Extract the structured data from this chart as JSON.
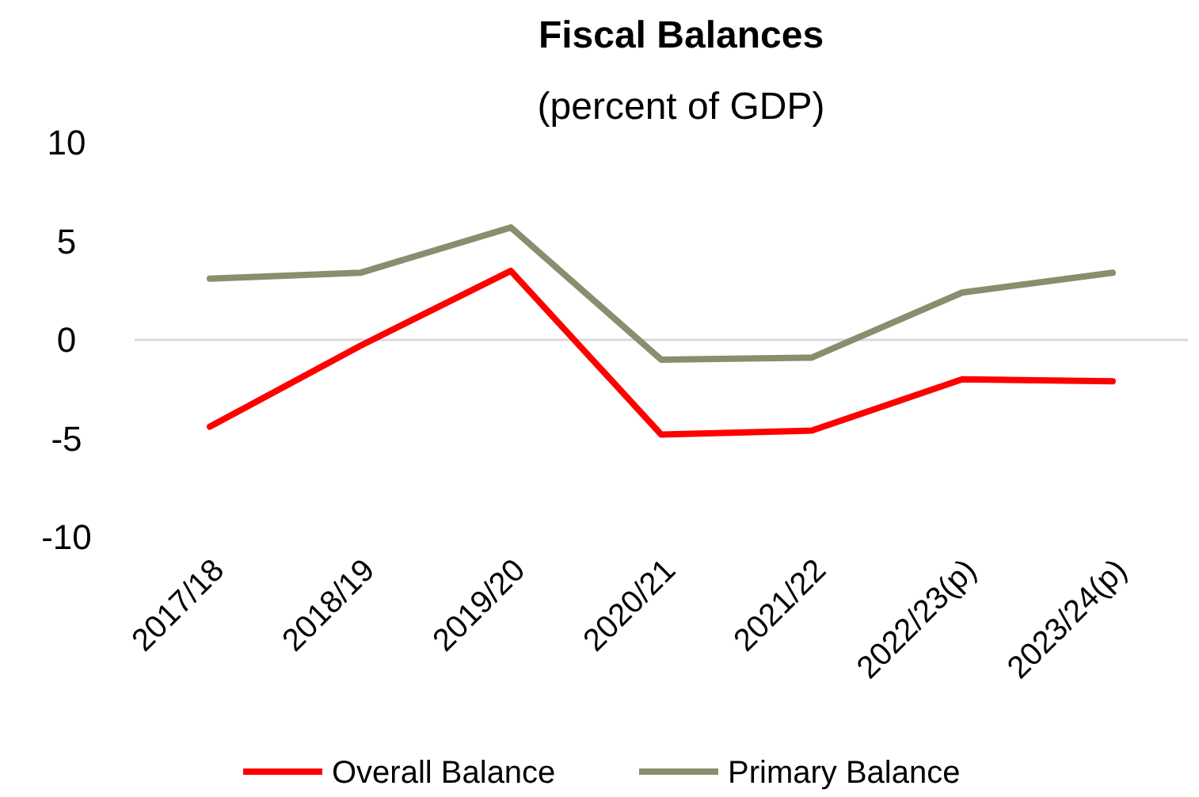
{
  "chart_data": {
    "type": "line",
    "title": "Fiscal Balances",
    "subtitle": "(percent of GDP)",
    "categories": [
      "2017/18",
      "2018/19",
      "2019/20",
      "2020/21",
      "2021/22",
      "2022/23(p)",
      "2023/24(p)"
    ],
    "series": [
      {
        "name": "Overall Balance",
        "color": "#ff0000",
        "values": [
          -4.4,
          -0.3,
          3.5,
          -4.8,
          -4.6,
          -2.0,
          -2.1
        ]
      },
      {
        "name": "Primary Balance",
        "color": "#8c8c6e",
        "values": [
          3.1,
          3.4,
          5.7,
          -1.0,
          -0.9,
          2.4,
          3.4
        ]
      }
    ],
    "ylim": [
      -10,
      10
    ],
    "yticks": [
      -10,
      -5,
      0,
      5,
      10
    ],
    "ref_lines": [
      {
        "axis": "y",
        "value": 0,
        "color": "#d9d9d9"
      }
    ],
    "legend": "bottom",
    "marker": "none",
    "line_style": "solid"
  }
}
